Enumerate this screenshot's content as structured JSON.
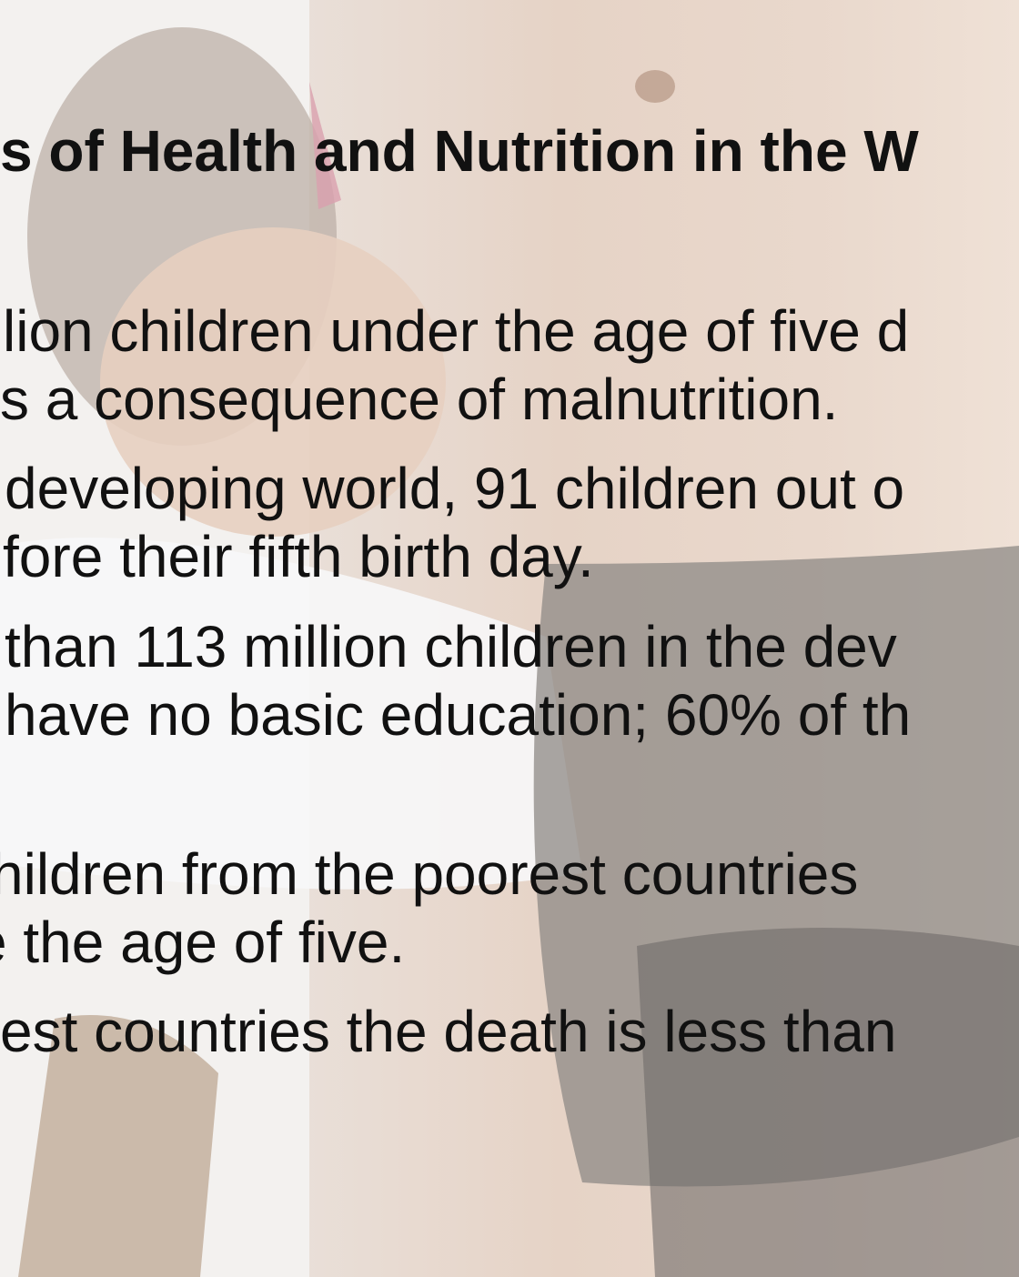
{
  "slide": {
    "title": "s of Health and Nutrition in the W",
    "lines": [
      "lion children under the age of five d",
      "s a consequence of malnutrition.",
      "developing world, 91 children out o",
      "fore their fifth birth day.",
      "than 113 million children in the dev",
      "have no basic education; 60% of th",
      "hildren from the poorest countries",
      "e the age of five.",
      "est countries the death is less than"
    ]
  }
}
